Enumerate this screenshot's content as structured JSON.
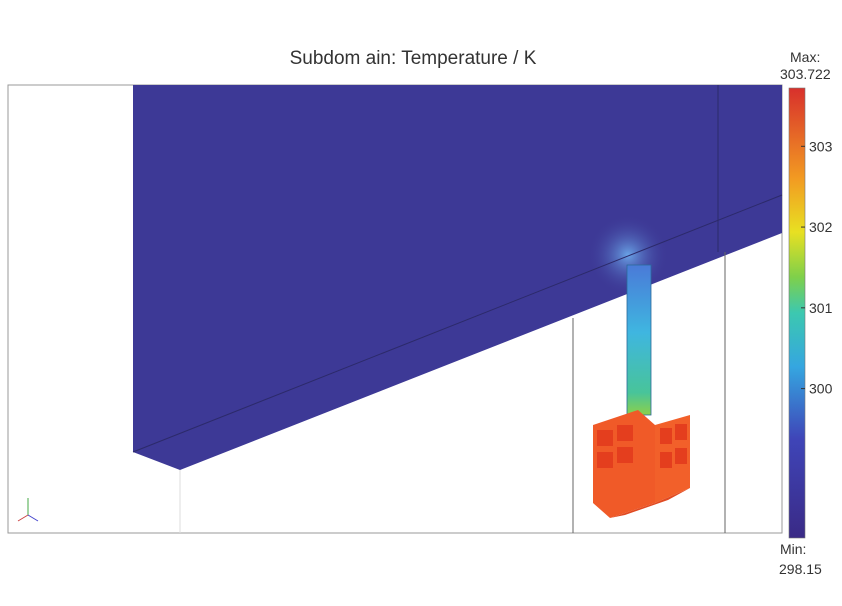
{
  "title": "Subdom ain: Temperature / K",
  "colorbar": {
    "max_label": "Max:",
    "max": 303.722,
    "min_label": "Min:",
    "min": 298.15,
    "ticks": [
      300,
      301,
      302,
      303
    ]
  }
}
